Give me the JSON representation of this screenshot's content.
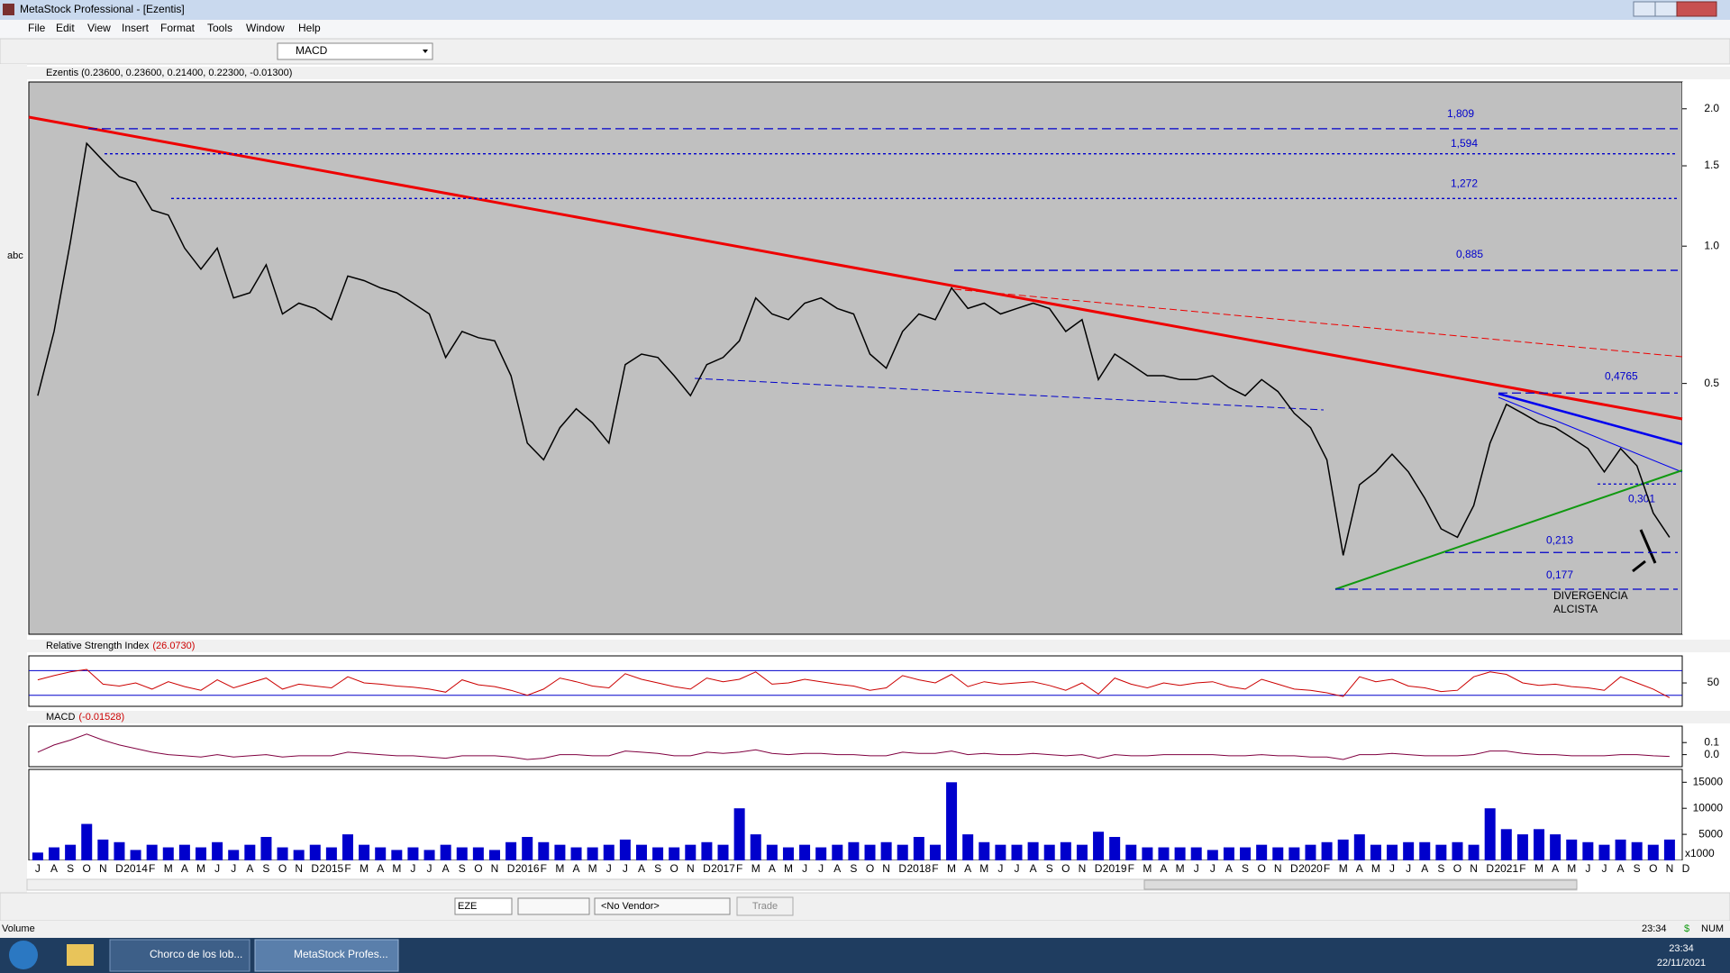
{
  "window": {
    "title": "MetaStock Professional - [Ezentis]"
  },
  "menu": [
    "File",
    "Edit",
    "View",
    "Insert",
    "Format",
    "Tools",
    "Window",
    "Help"
  ],
  "toolbar": {
    "indicator": "MACD"
  },
  "left_toolbar": {
    "text_tool": "abc"
  },
  "months": [
    "J",
    "A",
    "S",
    "O",
    "N",
    "D",
    "2014",
    "F",
    "M",
    "A",
    "M",
    "J",
    "J",
    "A",
    "S",
    "O",
    "N",
    "D",
    "2015",
    "F",
    "M",
    "A",
    "M",
    "J",
    "J",
    "A",
    "S",
    "O",
    "N",
    "D",
    "2016",
    "F",
    "M",
    "A",
    "M",
    "J",
    "J",
    "A",
    "S",
    "O",
    "N",
    "D",
    "2017",
    "F",
    "M",
    "A",
    "M",
    "J",
    "J",
    "A",
    "S",
    "O",
    "N",
    "D",
    "2018",
    "F",
    "M",
    "A",
    "M",
    "J",
    "J",
    "A",
    "S",
    "O",
    "N",
    "D",
    "2019",
    "F",
    "M",
    "A",
    "M",
    "J",
    "J",
    "A",
    "S",
    "O",
    "N",
    "D",
    "2020",
    "F",
    "M",
    "A",
    "M",
    "J",
    "J",
    "A",
    "S",
    "O",
    "N",
    "D",
    "2021",
    "F",
    "M",
    "A",
    "M",
    "J",
    "J",
    "A",
    "S",
    "O",
    "N",
    "D"
  ],
  "price_panel": {
    "header": "Ezentis (0.23600, 0.23600, 0.21400, 0.22300, -0.01300)",
    "log_scale": true,
    "ylim": [
      0.141,
      2.29
    ],
    "yticks": [
      {
        "value": 2,
        "label": "2.0"
      },
      {
        "value": 1.5,
        "label": "1.5"
      },
      {
        "value": 1,
        "label": "1.0"
      },
      {
        "value": 0.5,
        "label": "0.5"
      }
    ],
    "color": "#000000",
    "level_color": "#0000cc",
    "values": [
      0.47,
      0.65,
      1.02,
      1.68,
      1.54,
      1.42,
      1.38,
      1.2,
      1.17,
      0.99,
      0.89,
      0.99,
      0.77,
      0.79,
      0.91,
      0.71,
      0.75,
      0.73,
      0.69,
      0.86,
      0.84,
      0.81,
      0.79,
      0.75,
      0.71,
      0.57,
      0.65,
      0.63,
      0.62,
      0.52,
      0.37,
      0.34,
      0.4,
      0.44,
      0.41,
      0.37,
      0.55,
      0.58,
      0.57,
      0.52,
      0.47,
      0.55,
      0.57,
      0.62,
      0.77,
      0.71,
      0.69,
      0.75,
      0.77,
      0.73,
      0.71,
      0.58,
      0.54,
      0.65,
      0.71,
      0.69,
      0.81,
      0.73,
      0.75,
      0.71,
      0.73,
      0.75,
      0.73,
      0.65,
      0.69,
      0.51,
      0.58,
      0.55,
      0.52,
      0.52,
      0.51,
      0.51,
      0.52,
      0.49,
      0.47,
      0.51,
      0.48,
      0.43,
      0.4,
      0.34,
      0.21,
      0.3,
      0.32,
      0.35,
      0.32,
      0.28,
      0.24,
      0.23,
      0.27,
      0.37,
      0.45,
      0.43,
      0.41,
      0.4,
      0.38,
      0.36,
      0.32,
      0.36,
      0.33,
      0.26,
      0.23,
      null
    ],
    "levels": [
      {
        "value": 1.809,
        "label": "1,809"
      },
      {
        "value": 1.594,
        "label": "1,594"
      },
      {
        "value": 1.272,
        "label": "1,272"
      },
      {
        "value": 0.885,
        "label": "0,885"
      },
      {
        "value": 0.4765,
        "label": "0,4765"
      },
      {
        "value": 0.301,
        "label": "0,301"
      },
      {
        "value": 0.213,
        "label": "0,213"
      },
      {
        "value": 0.177,
        "label": "0,177"
      }
    ],
    "annotations": [
      "DIVERGENCIA",
      "ALCISTA"
    ]
  },
  "rsi_panel": {
    "name": "Relative Strength Index",
    "reading": "(26.0730)",
    "ylim": [
      12,
      94
    ],
    "yticks": [
      50
    ],
    "bands": [
      30,
      70
    ],
    "color": "#cc0000",
    "band_color": "#0000cc",
    "values": [
      55,
      62,
      68,
      72,
      48,
      45,
      50,
      40,
      52,
      44,
      38,
      55,
      42,
      50,
      58,
      40,
      48,
      45,
      42,
      60,
      50,
      48,
      45,
      43,
      40,
      35,
      55,
      47,
      44,
      38,
      30,
      40,
      58,
      52,
      45,
      42,
      65,
      56,
      50,
      44,
      40,
      58,
      52,
      56,
      68,
      48,
      50,
      56,
      52,
      48,
      45,
      38,
      42,
      62,
      55,
      50,
      64,
      44,
      52,
      48,
      50,
      52,
      46,
      38,
      50,
      32,
      58,
      48,
      42,
      50,
      46,
      50,
      52,
      44,
      40,
      56,
      48,
      40,
      38,
      34,
      28,
      60,
      52,
      56,
      45,
      42,
      36,
      38,
      60,
      68,
      64,
      50,
      46,
      48,
      44,
      42,
      38,
      60,
      50,
      40,
      26,
      null
    ]
  },
  "macd_panel": {
    "name": "MACD",
    "reading": "(-0.01528)",
    "ylim": [
      -0.1,
      0.236
    ],
    "yticks": [
      0.1,
      {
        "value": 0,
        "label": "0.0"
      }
    ],
    "color": "#800040",
    "values": [
      0.02,
      0.08,
      0.12,
      0.17,
      0.12,
      0.08,
      0.05,
      0.02,
      0,
      -0.01,
      -0.02,
      0,
      -0.02,
      -0.01,
      0,
      -0.02,
      -0.01,
      -0.01,
      -0.01,
      0.02,
      0.01,
      0,
      -0.01,
      -0.01,
      -0.02,
      -0.03,
      -0.01,
      -0.01,
      -0.01,
      -0.02,
      -0.04,
      -0.03,
      0,
      0,
      -0.01,
      -0.01,
      0.03,
      0.02,
      0.01,
      -0.01,
      -0.01,
      0.02,
      0.01,
      0.02,
      0.04,
      0.01,
      0,
      0.01,
      0.01,
      0,
      0,
      -0.01,
      -0.01,
      0.02,
      0.01,
      0.01,
      0.03,
      0,
      0.01,
      0,
      0,
      0.01,
      0,
      -0.01,
      0,
      -0.03,
      0,
      -0.01,
      -0.01,
      0,
      0,
      0,
      0,
      -0.01,
      -0.01,
      0,
      -0.01,
      -0.01,
      -0.02,
      -0.02,
      -0.04,
      0,
      0,
      0.01,
      0,
      -0.01,
      -0.01,
      -0.01,
      0,
      0.03,
      0.03,
      0.01,
      0,
      0,
      -0.01,
      -0.01,
      -0.01,
      0,
      0,
      -0.01,
      -0.015,
      null
    ]
  },
  "volume_panel": {
    "ylim": [
      0,
      17300
    ],
    "yticks": [
      15000,
      10000,
      5000
    ],
    "multiplier": "x1000",
    "color": "#0000cc",
    "values": [
      1500,
      2500,
      3000,
      7000,
      4000,
      3500,
      2000,
      3000,
      2500,
      3000,
      2500,
      3500,
      2000,
      3000,
      4500,
      2500,
      2000,
      3000,
      2500,
      5000,
      3000,
      2500,
      2000,
      2500,
      2000,
      3000,
      2500,
      2500,
      2000,
      3500,
      4500,
      3500,
      3000,
      2500,
      2500,
      3000,
      4000,
      3000,
      2500,
      2500,
      3000,
      3500,
      3000,
      10000,
      5000,
      3000,
      2500,
      3000,
      2500,
      3000,
      3500,
      3000,
      3500,
      3000,
      4500,
      3000,
      15000,
      5000,
      3500,
      3000,
      3000,
      3500,
      3000,
      3500,
      3000,
      5500,
      4500,
      3000,
      2500,
      2500,
      2500,
      2500,
      2000,
      2500,
      2500,
      3000,
      2500,
      2500,
      3000,
      3500,
      4000,
      5000,
      3000,
      3000,
      3500,
      3500,
      3000,
      3500,
      3000,
      10000,
      6000,
      5000,
      6000,
      5000,
      4000,
      3500,
      3000,
      4000,
      3500,
      3000,
      4000,
      null
    ]
  },
  "bottom_toolbar": {
    "symbol": "EZE",
    "vendor": "<No Vendor>",
    "trade": "Trade"
  },
  "status": {
    "left": "Volume",
    "time": "23:34",
    "currency": "$",
    "num": "NUM"
  },
  "taskbar": {
    "tasks": [
      "Chorco de los lob...",
      "MetaStock Profes..."
    ],
    "time": "23:34",
    "date": "22/11/2021"
  }
}
